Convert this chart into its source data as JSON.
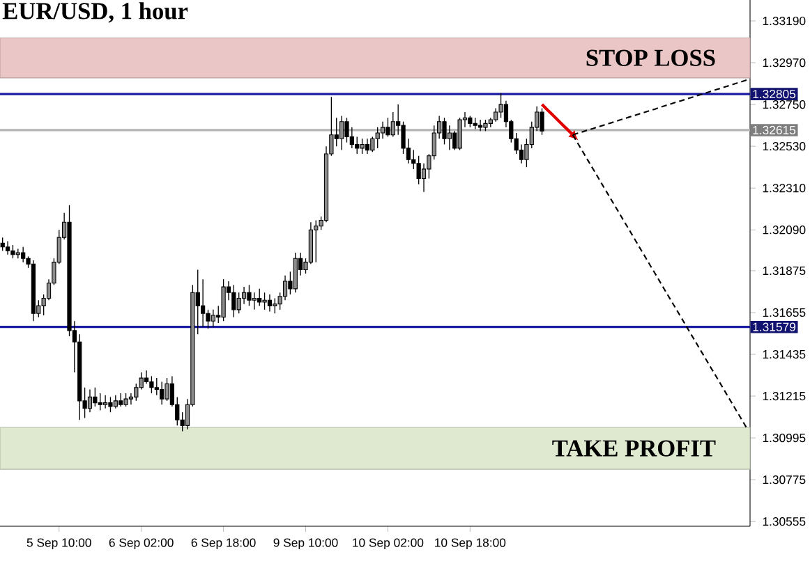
{
  "chart_data": {
    "type": "candlestick",
    "title": "EUR/USD, 1 hour",
    "categories": [
      null,
      null,
      null,
      null,
      null,
      null,
      null,
      null,
      null,
      null,
      null,
      "5 Sep 10:00",
      null,
      null,
      null,
      null,
      null,
      null,
      null,
      null,
      null,
      null,
      null,
      null,
      null,
      null,
      null,
      "6 Sep 02:00",
      null,
      null,
      null,
      null,
      null,
      null,
      null,
      null,
      null,
      null,
      null,
      null,
      null,
      null,
      null,
      "6 Sep 18:00",
      null,
      null,
      null,
      null,
      null,
      null,
      null,
      null,
      null,
      null,
      null,
      null,
      null,
      null,
      null,
      "9 Sep 10:00",
      null,
      null,
      null,
      null,
      null,
      null,
      null,
      null,
      null,
      null,
      null,
      null,
      null,
      null,
      null,
      "10 Sep 02:00",
      null,
      null,
      null,
      null,
      null,
      null,
      null,
      null,
      null,
      null,
      null,
      null,
      null,
      null,
      null,
      "10 Sep 18:00",
      null,
      null,
      null,
      null,
      null,
      null,
      null,
      null,
      null,
      null,
      null,
      null,
      null,
      null,
      null,
      null,
      null,
      null,
      null,
      null,
      null,
      null,
      null,
      null,
      null,
      null,
      null,
      null,
      null,
      null,
      null,
      null,
      null,
      null,
      null,
      null,
      null,
      null,
      null,
      null,
      null,
      null,
      null,
      null,
      null,
      null,
      null,
      null,
      null,
      null,
      null,
      null,
      null,
      null
    ],
    "ohlc": [
      [
        1.3202,
        1.3205,
        1.3198,
        1.32
      ],
      [
        1.32,
        1.3203,
        1.3196,
        1.3198
      ],
      [
        1.3198,
        1.3201,
        1.3194,
        1.3196
      ],
      [
        1.3196,
        1.3199,
        1.3194,
        1.3197
      ],
      [
        1.3197,
        1.32,
        1.3192,
        1.3194
      ],
      [
        1.3194,
        1.3195,
        1.3189,
        1.3191
      ],
      [
        1.3191,
        1.3193,
        1.3161,
        1.3165
      ],
      [
        1.3165,
        1.3172,
        1.3163,
        1.3169
      ],
      [
        1.3169,
        1.3175,
        1.3164,
        1.3173
      ],
      [
        1.3173,
        1.3183,
        1.3172,
        1.3181
      ],
      [
        1.3181,
        1.3194,
        1.318,
        1.3192
      ],
      [
        1.3192,
        1.3209,
        1.3191,
        1.3205
      ],
      [
        1.3205,
        1.3218,
        1.3204,
        1.3213
      ],
      [
        1.3213,
        1.3222,
        1.3153,
        1.3156
      ],
      [
        1.3156,
        1.3161,
        1.3134,
        1.315
      ],
      [
        1.315,
        1.3154,
        1.3109,
        1.3119
      ],
      [
        1.3119,
        1.3126,
        1.311,
        1.3115
      ],
      [
        1.3115,
        1.3125,
        1.3113,
        1.3121
      ],
      [
        1.3121,
        1.3126,
        1.3116,
        1.3118
      ],
      [
        1.3118,
        1.3123,
        1.3114,
        1.3117
      ],
      [
        1.3117,
        1.3122,
        1.3115,
        1.3118
      ],
      [
        1.3118,
        1.3121,
        1.3113,
        1.3116
      ],
      [
        1.3116,
        1.3122,
        1.3115,
        1.3119
      ],
      [
        1.3119,
        1.3123,
        1.3116,
        1.3117
      ],
      [
        1.3117,
        1.3123,
        1.3116,
        1.312
      ],
      [
        1.312,
        1.3123,
        1.3117,
        1.3121
      ],
      [
        1.3121,
        1.3128,
        1.3119,
        1.3126
      ],
      [
        1.3126,
        1.3134,
        1.3125,
        1.3131
      ],
      [
        1.3131,
        1.3135,
        1.3128,
        1.3129
      ],
      [
        1.3129,
        1.3132,
        1.3123,
        1.3126
      ],
      [
        1.3126,
        1.3131,
        1.3122,
        1.3125
      ],
      [
        1.3125,
        1.3129,
        1.3117,
        1.312
      ],
      [
        1.312,
        1.3131,
        1.3119,
        1.3128
      ],
      [
        1.3128,
        1.3132,
        1.3116,
        1.3117
      ],
      [
        1.3117,
        1.3121,
        1.3106,
        1.3109
      ],
      [
        1.3109,
        1.3113,
        1.3103,
        1.3106
      ],
      [
        1.3106,
        1.312,
        1.3104,
        1.3117
      ],
      [
        1.3117,
        1.318,
        1.3116,
        1.3176
      ],
      [
        1.3176,
        1.3188,
        1.3154,
        1.3169
      ],
      [
        1.3169,
        1.3183,
        1.3158,
        1.3165
      ],
      [
        1.3165,
        1.3167,
        1.3157,
        1.3161
      ],
      [
        1.3161,
        1.3167,
        1.3158,
        1.3164
      ],
      [
        1.3164,
        1.3169,
        1.316,
        1.3163
      ],
      [
        1.3163,
        1.3183,
        1.3161,
        1.3179
      ],
      [
        1.3179,
        1.3182,
        1.3172,
        1.3176
      ],
      [
        1.3176,
        1.318,
        1.3163,
        1.3167
      ],
      [
        1.3167,
        1.3176,
        1.3165,
        1.3173
      ],
      [
        1.3173,
        1.3179,
        1.317,
        1.3176
      ],
      [
        1.3176,
        1.318,
        1.3169,
        1.3172
      ],
      [
        1.3172,
        1.3176,
        1.3167,
        1.3173
      ],
      [
        1.3173,
        1.3178,
        1.3169,
        1.3171
      ],
      [
        1.3171,
        1.3176,
        1.3167,
        1.3172
      ],
      [
        1.3172,
        1.3175,
        1.3166,
        1.3169
      ],
      [
        1.3169,
        1.3173,
        1.3165,
        1.317
      ],
      [
        1.317,
        1.3176,
        1.3167,
        1.3174
      ],
      [
        1.3174,
        1.3185,
        1.3172,
        1.3182
      ],
      [
        1.3182,
        1.3187,
        1.3175,
        1.3178
      ],
      [
        1.3178,
        1.3197,
        1.3176,
        1.3194
      ],
      [
        1.3194,
        1.3197,
        1.3185,
        1.3188
      ],
      [
        1.3188,
        1.3194,
        1.3186,
        1.3192
      ],
      [
        1.3192,
        1.3213,
        1.3191,
        1.3209
      ],
      [
        1.3209,
        1.3214,
        1.3192,
        1.3211
      ],
      [
        1.3211,
        1.3216,
        1.3209,
        1.3214
      ],
      [
        1.3214,
        1.3253,
        1.3213,
        1.3249
      ],
      [
        1.3249,
        1.3279,
        1.3248,
        1.3259
      ],
      [
        1.3259,
        1.3268,
        1.3253,
        1.3257
      ],
      [
        1.3257,
        1.3269,
        1.3251,
        1.3266
      ],
      [
        1.3266,
        1.3268,
        1.3255,
        1.3258
      ],
      [
        1.3258,
        1.3263,
        1.3252,
        1.3254
      ],
      [
        1.3254,
        1.3258,
        1.3249,
        1.3252
      ],
      [
        1.3252,
        1.3257,
        1.3249,
        1.3254
      ],
      [
        1.3254,
        1.3257,
        1.3249,
        1.3251
      ],
      [
        1.3251,
        1.3258,
        1.325,
        1.3257
      ],
      [
        1.3257,
        1.3263,
        1.3252,
        1.326
      ],
      [
        1.326,
        1.3266,
        1.3257,
        1.3263
      ],
      [
        1.3263,
        1.3268,
        1.3258,
        1.3259
      ],
      [
        1.3259,
        1.3271,
        1.3258,
        1.3266
      ],
      [
        1.3266,
        1.3275,
        1.3259,
        1.3264
      ],
      [
        1.3264,
        1.3266,
        1.3249,
        1.3252
      ],
      [
        1.3252,
        1.3257,
        1.3244,
        1.3246
      ],
      [
        1.3246,
        1.3251,
        1.3241,
        1.3244
      ],
      [
        1.3244,
        1.3248,
        1.3233,
        1.3236
      ],
      [
        1.3236,
        1.3244,
        1.3229,
        1.3241
      ],
      [
        1.3241,
        1.3249,
        1.3236,
        1.3248
      ],
      [
        1.3248,
        1.3264,
        1.3246,
        1.326
      ],
      [
        1.326,
        1.3269,
        1.3257,
        1.3266
      ],
      [
        1.3266,
        1.3268,
        1.3254,
        1.3257
      ],
      [
        1.3257,
        1.3264,
        1.3251,
        1.326
      ],
      [
        1.326,
        1.3261,
        1.3251,
        1.3252
      ],
      [
        1.3252,
        1.3268,
        1.3251,
        1.3267
      ],
      [
        1.3267,
        1.3271,
        1.3263,
        1.3268
      ],
      [
        1.3268,
        1.3269,
        1.3263,
        1.3265
      ],
      [
        1.3265,
        1.3268,
        1.3262,
        1.3264
      ],
      [
        1.3264,
        1.3267,
        1.3261,
        1.3263
      ],
      [
        1.3263,
        1.3267,
        1.3261,
        1.3265
      ],
      [
        1.3265,
        1.3268,
        1.3263,
        1.3267
      ],
      [
        1.3267,
        1.3273,
        1.3266,
        1.3271
      ],
      [
        1.3271,
        1.3281,
        1.3268,
        1.3275
      ],
      [
        1.3275,
        1.3277,
        1.3263,
        1.3266
      ],
      [
        1.3266,
        1.3267,
        1.3255,
        1.3257
      ],
      [
        1.3257,
        1.326,
        1.3249,
        1.3251
      ],
      [
        1.3251,
        1.3254,
        1.3244,
        1.3246
      ],
      [
        1.3246,
        1.3257,
        1.3242,
        1.3254
      ],
      [
        1.3254,
        1.3266,
        1.3252,
        1.3263
      ],
      [
        1.3263,
        1.3274,
        1.3261,
        1.3271
      ],
      [
        1.3271,
        1.3273,
        1.3259,
        1.3261
      ],
      null,
      null,
      null,
      null,
      null,
      null,
      null,
      null,
      null,
      null,
      null,
      null,
      null,
      null,
      null,
      null,
      null,
      null,
      null,
      null,
      null,
      null,
      null,
      null,
      null,
      null,
      null,
      null,
      null,
      null,
      null,
      null,
      null,
      null,
      null,
      null,
      null,
      null,
      null,
      null
    ],
    "series": [
      {
        "type": "line",
        "color": "#e00000",
        "line_style": "solid",
        "values": [
          null,
          null,
          null,
          null,
          null,
          null,
          null,
          null,
          null,
          null,
          null,
          null,
          null,
          null,
          null,
          null,
          null,
          null,
          null,
          null,
          null,
          null,
          null,
          null,
          null,
          null,
          null,
          null,
          null,
          null,
          null,
          null,
          null,
          null,
          null,
          null,
          null,
          null,
          null,
          null,
          null,
          null,
          null,
          null,
          null,
          null,
          null,
          null,
          null,
          null,
          null,
          null,
          null,
          null,
          null,
          null,
          null,
          null,
          null,
          null,
          null,
          null,
          null,
          null,
          null,
          null,
          null,
          null,
          null,
          null,
          null,
          null,
          null,
          null,
          null,
          null,
          null,
          null,
          null,
          null,
          null,
          null,
          null,
          null,
          null,
          null,
          null,
          null,
          null,
          null,
          null,
          null,
          null,
          null,
          null,
          null,
          null,
          null,
          null,
          null,
          null,
          null,
          null,
          null,
          null,
          1.3275,
          1.32723,
          1.32697,
          1.3267,
          1.32643,
          1.32617,
          1.3259,
          null,
          null,
          null,
          null,
          null,
          null,
          null,
          null,
          null,
          null,
          null,
          null,
          null,
          null,
          null,
          null,
          null,
          null,
          null,
          null,
          null,
          null,
          null,
          null,
          null,
          null,
          null,
          null,
          null,
          null,
          null,
          null,
          null,
          null
        ]
      },
      {
        "type": "line",
        "color": "#000000",
        "line_style": "dashed",
        "values": [
          null,
          null,
          null,
          null,
          null,
          null,
          null,
          null,
          null,
          null,
          null,
          null,
          null,
          null,
          null,
          null,
          null,
          null,
          null,
          null,
          null,
          null,
          null,
          null,
          null,
          null,
          null,
          null,
          null,
          null,
          null,
          null,
          null,
          null,
          null,
          null,
          null,
          null,
          null,
          null,
          null,
          null,
          null,
          null,
          null,
          null,
          null,
          null,
          null,
          null,
          null,
          null,
          null,
          null,
          null,
          null,
          null,
          null,
          null,
          null,
          null,
          null,
          null,
          null,
          null,
          null,
          null,
          null,
          null,
          null,
          null,
          null,
          null,
          null,
          null,
          null,
          null,
          null,
          null,
          null,
          null,
          null,
          null,
          null,
          null,
          null,
          null,
          null,
          null,
          null,
          null,
          null,
          null,
          null,
          null,
          null,
          null,
          null,
          null,
          null,
          null,
          null,
          null,
          null,
          null,
          null,
          null,
          null,
          null,
          null,
          null,
          1.3259,
          1.32599,
          1.32607,
          1.32616,
          1.32624,
          1.32633,
          1.32641,
          1.3265,
          1.32658,
          1.32667,
          1.32675,
          1.32684,
          1.32692,
          1.32701,
          1.32709,
          1.32718,
          1.32726,
          1.32735,
          1.32744,
          1.32752,
          1.32761,
          1.32769,
          1.32778,
          1.32786,
          1.32795,
          1.32803,
          1.32812,
          1.3282,
          1.32829,
          1.32837,
          1.32846,
          1.32854,
          1.32863,
          1.32871,
          1.3288
        ]
      },
      {
        "type": "line",
        "color": "#000000",
        "line_style": "dashed",
        "values": [
          null,
          null,
          null,
          null,
          null,
          null,
          null,
          null,
          null,
          null,
          null,
          null,
          null,
          null,
          null,
          null,
          null,
          null,
          null,
          null,
          null,
          null,
          null,
          null,
          null,
          null,
          null,
          null,
          null,
          null,
          null,
          null,
          null,
          null,
          null,
          null,
          null,
          null,
          null,
          null,
          null,
          null,
          null,
          null,
          null,
          null,
          null,
          null,
          null,
          null,
          null,
          null,
          null,
          null,
          null,
          null,
          null,
          null,
          null,
          null,
          null,
          null,
          null,
          null,
          null,
          null,
          null,
          null,
          null,
          null,
          null,
          null,
          null,
          null,
          null,
          null,
          null,
          null,
          null,
          null,
          null,
          null,
          null,
          null,
          null,
          null,
          null,
          null,
          null,
          null,
          null,
          null,
          null,
          null,
          null,
          null,
          null,
          null,
          null,
          null,
          null,
          null,
          null,
          null,
          null,
          null,
          null,
          null,
          null,
          null,
          null,
          1.3259,
          1.32544,
          1.32499,
          1.32453,
          1.32408,
          1.32362,
          1.32316,
          1.32271,
          1.32225,
          1.3218,
          1.32134,
          1.32089,
          1.32043,
          1.31997,
          1.31952,
          1.31906,
          1.31861,
          1.31815,
          1.31769,
          1.31724,
          1.31678,
          1.31633,
          1.31587,
          1.31541,
          1.31496,
          1.3145,
          1.31405,
          1.31359,
          1.31314,
          1.31268,
          1.31222,
          1.31177,
          1.31131,
          1.31086,
          1.3104
        ]
      }
    ],
    "ylim": [
      1.3053,
      1.333
    ],
    "yticks": [
      {
        "value": 1.3319,
        "label": "1.33190"
      },
      {
        "value": 1.3297,
        "label": "1.32970"
      },
      {
        "value": 1.3275,
        "label": "1.32750"
      },
      {
        "value": 1.3253,
        "label": "1.32530"
      },
      {
        "value": 1.3231,
        "label": "1.32310"
      },
      {
        "value": 1.3209,
        "label": "1.32090"
      },
      {
        "value": 1.31875,
        "label": "1.31875"
      },
      {
        "value": 1.31655,
        "label": "1.31655"
      },
      {
        "value": 1.31435,
        "label": "1.31435"
      },
      {
        "value": 1.31215,
        "label": "1.31215"
      },
      {
        "value": 1.30995,
        "label": "1.30995"
      },
      {
        "value": 1.30775,
        "label": "1.30775"
      },
      {
        "value": 1.30555,
        "label": "1.30555"
      }
    ],
    "ref_lines": [
      {
        "axis": "y",
        "value": 1.32805,
        "label": "1.32805",
        "color": "#1a1aa0"
      },
      {
        "axis": "y",
        "value": 1.31579,
        "label": "1.31579",
        "color": "#1a1aa0"
      },
      {
        "axis": "y",
        "value": 1.32615,
        "label": "1.32615",
        "color": "#b4b4b4"
      }
    ],
    "bands": [
      {
        "axis": "y",
        "from": 1.3289,
        "to": 1.331,
        "label": "STOP LOSS",
        "color": "#eac6c6"
      },
      {
        "axis": "y",
        "from": 1.3083,
        "to": 1.3105,
        "label": "TAKE PROFIT",
        "color": "#dfe9cf"
      }
    ]
  }
}
